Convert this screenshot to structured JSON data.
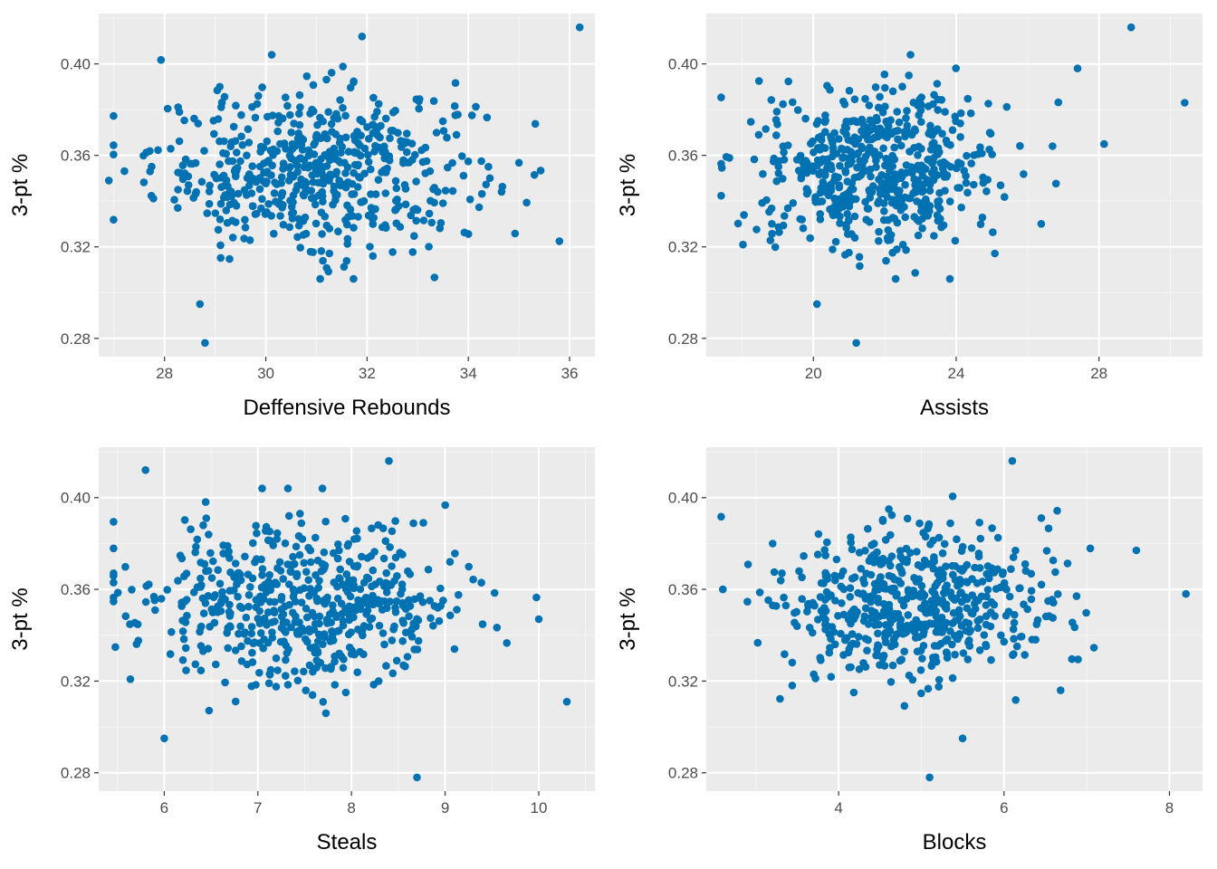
{
  "colors": {
    "point": "#0072B2",
    "panel_bg": "#EBEBEB",
    "grid_major": "#FFFFFF",
    "grid_minor": "#F5F5F5"
  },
  "chart_data": [
    {
      "type": "scatter",
      "xlabel": "Deffensive Rebounds",
      "ylabel": "3-pt %",
      "xlim": [
        26.7,
        36.5
      ],
      "ylim": [
        0.272,
        0.422
      ],
      "x_ticks": [
        "28",
        "30",
        "32",
        "34",
        "36"
      ],
      "y_ticks": [
        "0.28",
        "0.32",
        "0.36",
        "0.40"
      ],
      "x_center": 31.0,
      "x_spread": 1.6,
      "outliers": [
        [
          36.2,
          0.416
        ],
        [
          28.8,
          0.278
        ],
        [
          28.7,
          0.295
        ],
        [
          26.9,
          0.349
        ],
        [
          31.9,
          0.412
        ]
      ]
    },
    {
      "type": "scatter",
      "xlabel": "Assists",
      "ylabel": "3-pt %",
      "xlim": [
        17.0,
        30.9
      ],
      "ylim": [
        0.272,
        0.422
      ],
      "x_ticks": [
        "20",
        "24",
        "28"
      ],
      "y_ticks": [
        "0.28",
        "0.32",
        "0.36",
        "0.40"
      ],
      "x_center": 21.7,
      "x_spread": 1.7,
      "outliers": [
        [
          28.9,
          0.416
        ],
        [
          30.4,
          0.383
        ],
        [
          27.4,
          0.398
        ],
        [
          21.2,
          0.278
        ],
        [
          20.1,
          0.295
        ],
        [
          26.7,
          0.364
        ]
      ]
    },
    {
      "type": "scatter",
      "xlabel": "Steals",
      "ylabel": "3-pt %",
      "xlim": [
        5.3,
        10.6
      ],
      "ylim": [
        0.272,
        0.422
      ],
      "x_ticks": [
        "6",
        "7",
        "8",
        "9",
        "10"
      ],
      "y_ticks": [
        "0.28",
        "0.32",
        "0.36",
        "0.40"
      ],
      "x_center": 7.5,
      "x_spread": 0.85,
      "outliers": [
        [
          10.3,
          0.311
        ],
        [
          8.4,
          0.416
        ],
        [
          5.8,
          0.412
        ],
        [
          6.0,
          0.295
        ],
        [
          8.7,
          0.278
        ],
        [
          10.0,
          0.347
        ]
      ]
    },
    {
      "type": "scatter",
      "xlabel": "Blocks",
      "ylabel": "3-pt %",
      "xlim": [
        2.4,
        8.4
      ],
      "ylim": [
        0.272,
        0.422
      ],
      "x_ticks": [
        "4",
        "6",
        "8"
      ],
      "y_ticks": [
        "0.28",
        "0.32",
        "0.36",
        "0.40"
      ],
      "x_center": 4.9,
      "x_spread": 0.85,
      "outliers": [
        [
          8.2,
          0.358
        ],
        [
          7.6,
          0.377
        ],
        [
          2.6,
          0.36
        ],
        [
          6.1,
          0.416
        ],
        [
          5.1,
          0.278
        ],
        [
          5.5,
          0.295
        ]
      ]
    }
  ]
}
